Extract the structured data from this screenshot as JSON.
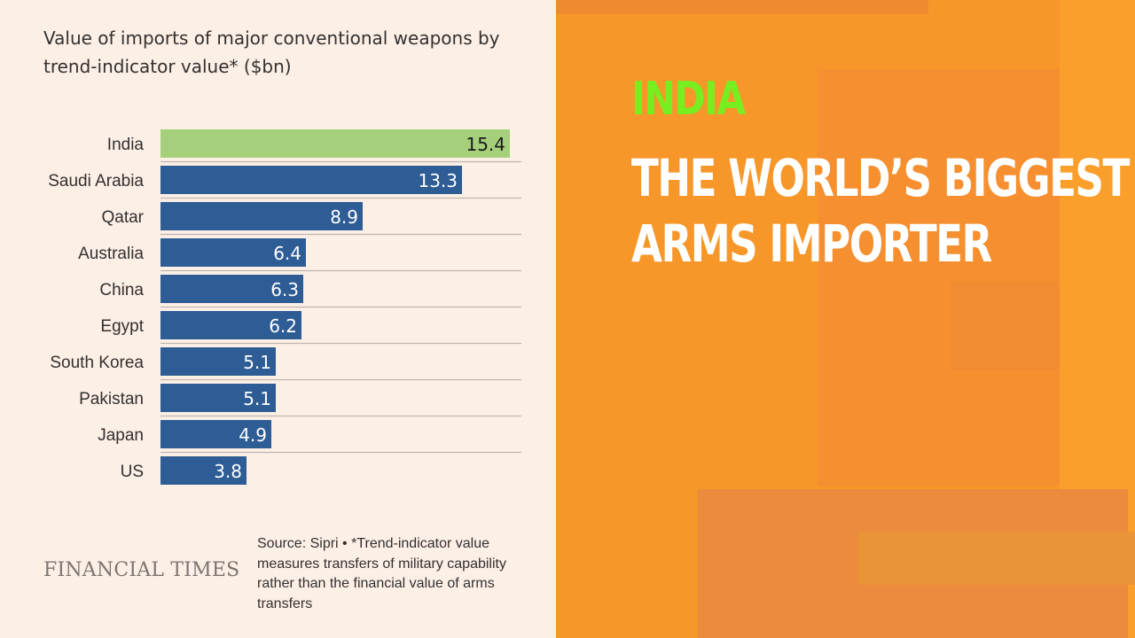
{
  "chart_data": {
    "type": "bar",
    "orientation": "horizontal",
    "title": "Value of imports of major conventional weapons by trend-indicator value* ($bn)",
    "categories": [
      "India",
      "Saudi Arabia",
      "Qatar",
      "Australia",
      "China",
      "Egypt",
      "South Korea",
      "Pakistan",
      "Japan",
      "US"
    ],
    "values": [
      15.4,
      13.3,
      8.9,
      6.4,
      6.3,
      6.2,
      5.1,
      5.1,
      4.9,
      3.8
    ],
    "value_labels": [
      "15.4",
      "13.3",
      "8.9",
      "6.4",
      "6.3",
      "6.2",
      "5.1",
      "5.1",
      "4.9",
      "3.8"
    ],
    "highlight_category": "India",
    "xlim": [
      0,
      15.4
    ],
    "grid": false,
    "legend": "none",
    "colors": {
      "bar": "#2e5c95",
      "highlight_bar": "#a5cf7b",
      "label_on_bar": "#ffffff",
      "label_on_highlight": "#1a1a1a",
      "separator": "#bfb7b0",
      "category_text": "#33302e"
    }
  },
  "branding": {
    "publisher": "FINANCIAL TIMES",
    "source_note": "Source: Sipri • *Trend-indicator value measures transfers of military capability rather than the financial value of arms transfers"
  },
  "headline": {
    "country": "INDIA",
    "line1": "THE WORLD’S BIGGEST",
    "line2": "ARMS IMPORTER"
  },
  "theme": {
    "chart_background": "#fcefe6",
    "panel_background": "#f79a2a",
    "headline_accent": "#77ee1f",
    "headline_text": "#ffffff"
  }
}
